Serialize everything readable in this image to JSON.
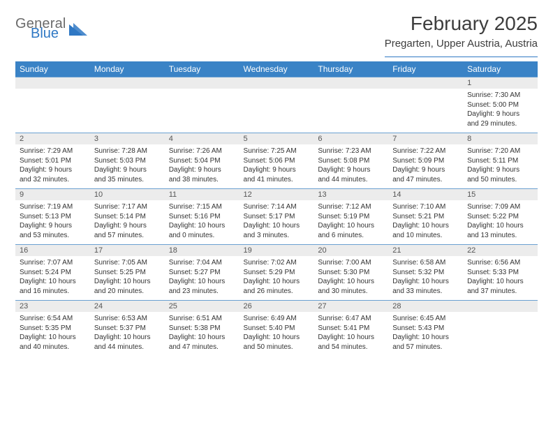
{
  "brand": {
    "word1": "General",
    "word2": "Blue",
    "text_gray": "#6b6b6b",
    "text_blue": "#2f78c4",
    "tri_color": "#2f78c4"
  },
  "title": {
    "month": "February 2025",
    "location": "Pregarten, Upper Austria, Austria"
  },
  "colors": {
    "header_bg": "#3a83c6",
    "header_text": "#ffffff",
    "row_border": "#6aa0d1",
    "daynum_bg": "#ececec",
    "body_text": "#333333"
  },
  "day_headers": [
    "Sunday",
    "Monday",
    "Tuesday",
    "Wednesday",
    "Thursday",
    "Friday",
    "Saturday"
  ],
  "weeks": [
    [
      {
        "num": "",
        "lines": []
      },
      {
        "num": "",
        "lines": []
      },
      {
        "num": "",
        "lines": []
      },
      {
        "num": "",
        "lines": []
      },
      {
        "num": "",
        "lines": []
      },
      {
        "num": "",
        "lines": []
      },
      {
        "num": "1",
        "lines": [
          "Sunrise: 7:30 AM",
          "Sunset: 5:00 PM",
          "Daylight: 9 hours",
          "and 29 minutes."
        ]
      }
    ],
    [
      {
        "num": "2",
        "lines": [
          "Sunrise: 7:29 AM",
          "Sunset: 5:01 PM",
          "Daylight: 9 hours",
          "and 32 minutes."
        ]
      },
      {
        "num": "3",
        "lines": [
          "Sunrise: 7:28 AM",
          "Sunset: 5:03 PM",
          "Daylight: 9 hours",
          "and 35 minutes."
        ]
      },
      {
        "num": "4",
        "lines": [
          "Sunrise: 7:26 AM",
          "Sunset: 5:04 PM",
          "Daylight: 9 hours",
          "and 38 minutes."
        ]
      },
      {
        "num": "5",
        "lines": [
          "Sunrise: 7:25 AM",
          "Sunset: 5:06 PM",
          "Daylight: 9 hours",
          "and 41 minutes."
        ]
      },
      {
        "num": "6",
        "lines": [
          "Sunrise: 7:23 AM",
          "Sunset: 5:08 PM",
          "Daylight: 9 hours",
          "and 44 minutes."
        ]
      },
      {
        "num": "7",
        "lines": [
          "Sunrise: 7:22 AM",
          "Sunset: 5:09 PM",
          "Daylight: 9 hours",
          "and 47 minutes."
        ]
      },
      {
        "num": "8",
        "lines": [
          "Sunrise: 7:20 AM",
          "Sunset: 5:11 PM",
          "Daylight: 9 hours",
          "and 50 minutes."
        ]
      }
    ],
    [
      {
        "num": "9",
        "lines": [
          "Sunrise: 7:19 AM",
          "Sunset: 5:13 PM",
          "Daylight: 9 hours",
          "and 53 minutes."
        ]
      },
      {
        "num": "10",
        "lines": [
          "Sunrise: 7:17 AM",
          "Sunset: 5:14 PM",
          "Daylight: 9 hours",
          "and 57 minutes."
        ]
      },
      {
        "num": "11",
        "lines": [
          "Sunrise: 7:15 AM",
          "Sunset: 5:16 PM",
          "Daylight: 10 hours",
          "and 0 minutes."
        ]
      },
      {
        "num": "12",
        "lines": [
          "Sunrise: 7:14 AM",
          "Sunset: 5:17 PM",
          "Daylight: 10 hours",
          "and 3 minutes."
        ]
      },
      {
        "num": "13",
        "lines": [
          "Sunrise: 7:12 AM",
          "Sunset: 5:19 PM",
          "Daylight: 10 hours",
          "and 6 minutes."
        ]
      },
      {
        "num": "14",
        "lines": [
          "Sunrise: 7:10 AM",
          "Sunset: 5:21 PM",
          "Daylight: 10 hours",
          "and 10 minutes."
        ]
      },
      {
        "num": "15",
        "lines": [
          "Sunrise: 7:09 AM",
          "Sunset: 5:22 PM",
          "Daylight: 10 hours",
          "and 13 minutes."
        ]
      }
    ],
    [
      {
        "num": "16",
        "lines": [
          "Sunrise: 7:07 AM",
          "Sunset: 5:24 PM",
          "Daylight: 10 hours",
          "and 16 minutes."
        ]
      },
      {
        "num": "17",
        "lines": [
          "Sunrise: 7:05 AM",
          "Sunset: 5:25 PM",
          "Daylight: 10 hours",
          "and 20 minutes."
        ]
      },
      {
        "num": "18",
        "lines": [
          "Sunrise: 7:04 AM",
          "Sunset: 5:27 PM",
          "Daylight: 10 hours",
          "and 23 minutes."
        ]
      },
      {
        "num": "19",
        "lines": [
          "Sunrise: 7:02 AM",
          "Sunset: 5:29 PM",
          "Daylight: 10 hours",
          "and 26 minutes."
        ]
      },
      {
        "num": "20",
        "lines": [
          "Sunrise: 7:00 AM",
          "Sunset: 5:30 PM",
          "Daylight: 10 hours",
          "and 30 minutes."
        ]
      },
      {
        "num": "21",
        "lines": [
          "Sunrise: 6:58 AM",
          "Sunset: 5:32 PM",
          "Daylight: 10 hours",
          "and 33 minutes."
        ]
      },
      {
        "num": "22",
        "lines": [
          "Sunrise: 6:56 AM",
          "Sunset: 5:33 PM",
          "Daylight: 10 hours",
          "and 37 minutes."
        ]
      }
    ],
    [
      {
        "num": "23",
        "lines": [
          "Sunrise: 6:54 AM",
          "Sunset: 5:35 PM",
          "Daylight: 10 hours",
          "and 40 minutes."
        ]
      },
      {
        "num": "24",
        "lines": [
          "Sunrise: 6:53 AM",
          "Sunset: 5:37 PM",
          "Daylight: 10 hours",
          "and 44 minutes."
        ]
      },
      {
        "num": "25",
        "lines": [
          "Sunrise: 6:51 AM",
          "Sunset: 5:38 PM",
          "Daylight: 10 hours",
          "and 47 minutes."
        ]
      },
      {
        "num": "26",
        "lines": [
          "Sunrise: 6:49 AM",
          "Sunset: 5:40 PM",
          "Daylight: 10 hours",
          "and 50 minutes."
        ]
      },
      {
        "num": "27",
        "lines": [
          "Sunrise: 6:47 AM",
          "Sunset: 5:41 PM",
          "Daylight: 10 hours",
          "and 54 minutes."
        ]
      },
      {
        "num": "28",
        "lines": [
          "Sunrise: 6:45 AM",
          "Sunset: 5:43 PM",
          "Daylight: 10 hours",
          "and 57 minutes."
        ]
      },
      {
        "num": "",
        "lines": []
      }
    ]
  ]
}
